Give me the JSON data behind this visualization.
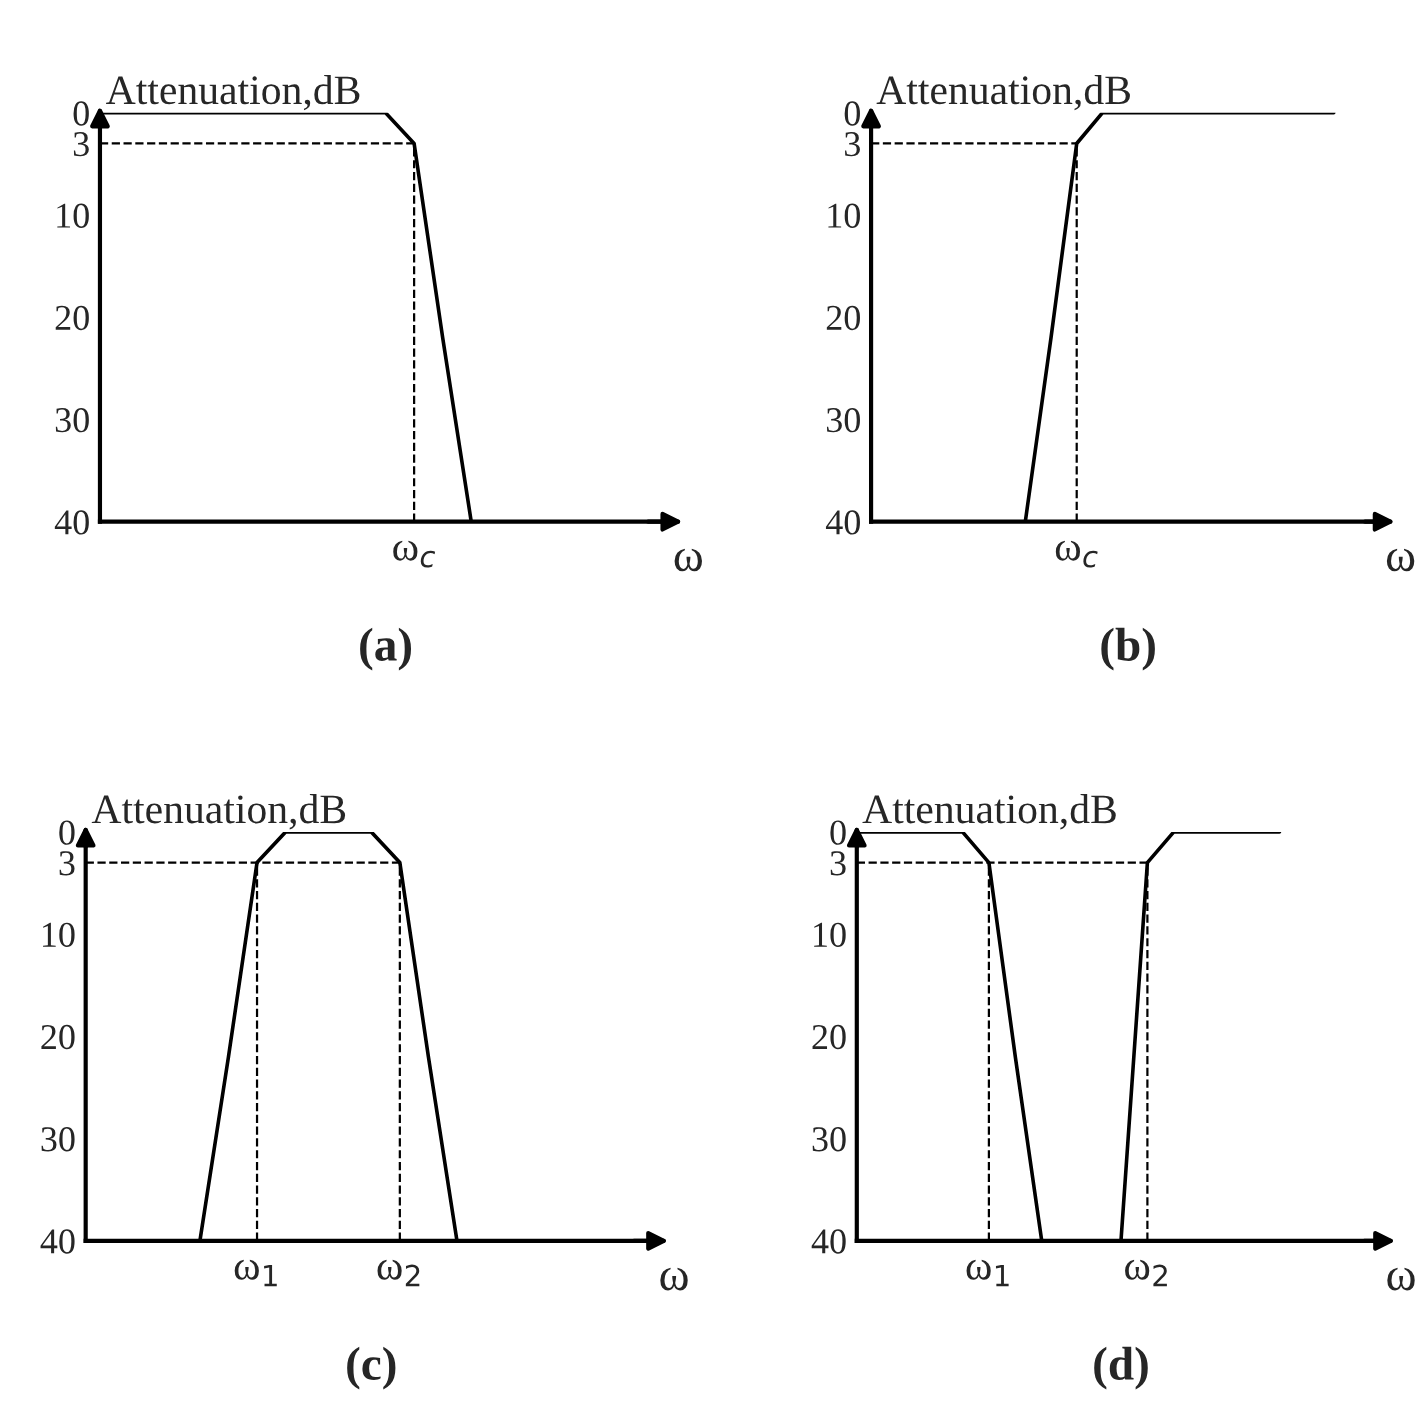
{
  "chart_data": [
    {
      "type": "line",
      "title": "(a)",
      "xlabel": "ω",
      "ylabel": "Attenuation,dB",
      "ylim": [
        40,
        0
      ],
      "yticks": [
        0,
        3,
        10,
        20,
        30,
        40
      ],
      "categories": [
        null,
        null,
        null,
        null,
        null,
        null,
        null,
        null,
        null,
        null,
        null,
        "ω$_{c}$",
        null,
        null,
        null,
        null,
        null,
        null,
        null,
        null,
        null
      ],
      "ref_lines": [
        {
          "axis": "x",
          "value": "ω$_{c}$",
          "line_style": "dashed",
          "color": "#000000"
        }
      ],
      "series": [
        {
          "color": "#000000",
          "line_style": "solid",
          "values": [
            0,
            0,
            0,
            0,
            0,
            0,
            0,
            0,
            0,
            0,
            0,
            3,
            22,
            40,
            40,
            null,
            null,
            null,
            null,
            null,
            null
          ]
        },
        {
          "color": "#000000",
          "line_style": "dashed",
          "values": [
            3,
            3,
            3,
            3,
            3,
            3,
            3,
            3,
            3,
            3,
            3,
            3,
            null,
            null,
            null,
            null,
            null,
            null,
            null,
            null,
            null
          ]
        }
      ]
    },
    {
      "type": "line",
      "title": "(b)",
      "xlabel": "ω",
      "ylabel": "Attenuation,dB",
      "ylim": [
        40,
        0
      ],
      "yticks": [
        0,
        3,
        10,
        20,
        30,
        40
      ],
      "categories": [
        null,
        null,
        null,
        null,
        null,
        null,
        null,
        null,
        "ω$_{c}$",
        null,
        null,
        null,
        null,
        null,
        null,
        null,
        null,
        null,
        null,
        null,
        null
      ],
      "ref_lines": [
        {
          "axis": "x",
          "value": "ω$_{c}$",
          "line_style": "dashed",
          "color": "#000000"
        }
      ],
      "series": [
        {
          "color": "#000000",
          "line_style": "solid",
          "values": [
            null,
            null,
            null,
            null,
            null,
            null,
            40,
            22,
            3,
            0,
            0,
            0,
            0,
            0,
            0,
            0,
            0,
            0,
            0,
            null,
            null
          ]
        },
        {
          "color": "#000000",
          "line_style": "dashed",
          "values": [
            3,
            3,
            3,
            3,
            3,
            3,
            3,
            3,
            3,
            null,
            null,
            null,
            null,
            null,
            null,
            null,
            null,
            null,
            null,
            null,
            null
          ]
        }
      ]
    },
    {
      "type": "line",
      "title": "(c)",
      "xlabel": "ω",
      "ylabel": "Attenuation,dB",
      "ylim": [
        40,
        0
      ],
      "yticks": [
        0,
        3,
        10,
        20,
        30,
        40
      ],
      "categories": [
        null,
        null,
        null,
        null,
        null,
        null,
        "ω$_{1}$",
        null,
        null,
        null,
        null,
        "ω$_{2}$",
        null,
        null,
        null,
        null,
        null,
        null,
        null,
        null,
        null
      ],
      "ref_lines": [
        {
          "axis": "x",
          "value": "ω$_{1}$",
          "line_style": "dashed",
          "color": "#000000"
        },
        {
          "axis": "x",
          "value": "ω$_{2}$",
          "line_style": "dashed",
          "color": "#000000"
        }
      ],
      "series": [
        {
          "color": "#000000",
          "line_style": "solid",
          "values": [
            null,
            null,
            null,
            40,
            40,
            22,
            3,
            0,
            0,
            0,
            0,
            3,
            22,
            40,
            40,
            null,
            null,
            null,
            null,
            null,
            null
          ]
        },
        {
          "color": "#000000",
          "line_style": "dashed",
          "values": [
            3,
            3,
            3,
            3,
            3,
            3,
            3,
            3,
            3,
            3,
            3,
            3,
            null,
            null,
            null,
            null,
            null,
            null,
            null,
            null,
            null
          ]
        }
      ]
    },
    {
      "type": "line",
      "title": "(d)",
      "xlabel": "ω",
      "ylabel": "Attenuation,dB",
      "ylim": [
        40,
        0
      ],
      "yticks": [
        0,
        3,
        10,
        20,
        30,
        40
      ],
      "categories": [
        null,
        null,
        null,
        null,
        null,
        "ω$_{1}$",
        null,
        null,
        null,
        null,
        null,
        "ω$_{2}$",
        null,
        null,
        null,
        null,
        null,
        null,
        null,
        null,
        null
      ],
      "ref_lines": [
        {
          "axis": "x",
          "value": "ω$_{1}$",
          "line_style": "dashed",
          "color": "#000000"
        },
        {
          "axis": "x",
          "value": "ω$_{2}$",
          "line_style": "dashed",
          "color": "#000000"
        }
      ],
      "series": [
        {
          "color": "#000000",
          "line_style": "solid",
          "values": [
            0,
            0,
            0,
            0,
            0,
            3,
            22,
            40,
            40,
            40,
            40,
            3,
            0,
            0,
            0,
            0,
            0,
            null,
            null,
            null,
            null
          ]
        },
        {
          "color": "#000000",
          "line_style": "dashed",
          "values": [
            3,
            3,
            3,
            3,
            3,
            3,
            3,
            3,
            3,
            3,
            3,
            3,
            null,
            null,
            null,
            null,
            null,
            null,
            null,
            null,
            null
          ]
        }
      ]
    }
  ]
}
